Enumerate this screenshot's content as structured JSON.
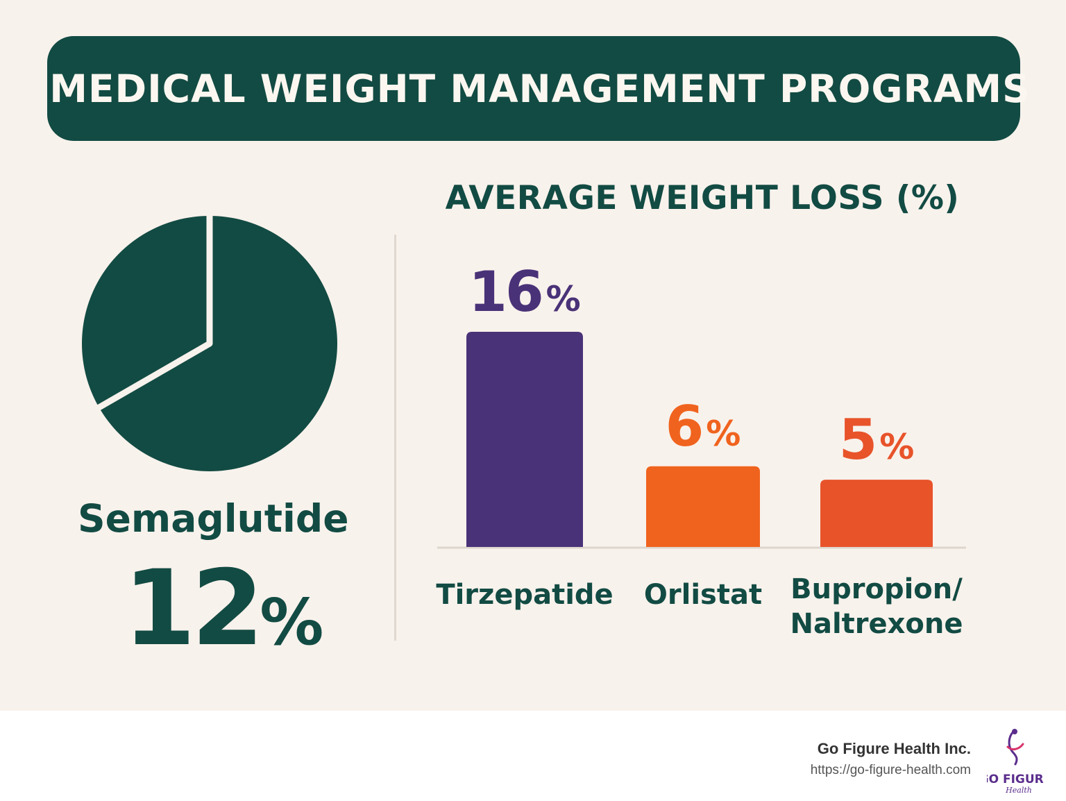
{
  "title": "MEDICAL WEIGHT MANAGEMENT PROGRAMS",
  "colors": {
    "background": "#f8f2ec",
    "dark_green": "#124b43",
    "purple": "#4a3278",
    "orange": "#f0631e",
    "orange_red": "#e8532a",
    "baseline": "#ddd6cc"
  },
  "highlight": {
    "label": "Semaglutide",
    "value": "12",
    "unit": "%"
  },
  "chart_data": [
    {
      "type": "pie",
      "slices": [
        {
          "label": "Semaglutide",
          "value": 12
        },
        {
          "label": "",
          "value": 6
        }
      ],
      "title": "",
      "value_label": "12%"
    },
    {
      "type": "bar",
      "title": "AVERAGE WEIGHT LOSS (%)",
      "categories": [
        "Tirzepatide",
        "Orlistat",
        "Bupropion/\nNaltrexone"
      ],
      "category_lines": [
        [
          "Tirzepatide"
        ],
        [
          "Orlistat"
        ],
        [
          "Bupropion/",
          "Naltrexone"
        ]
      ],
      "values": [
        16,
        6,
        5
      ],
      "value_labels": [
        "16",
        "6",
        "5"
      ],
      "unit": "%",
      "colors": [
        "#4a3278",
        "#f0631e",
        "#e8532a"
      ],
      "xlabel": "",
      "ylabel": "",
      "ylim": [
        0,
        16
      ],
      "grid": false
    }
  ],
  "footer": {
    "company": "Go Figure Health Inc.",
    "url": "https://go-figure-health.com",
    "logo_text": "GO FIGURE",
    "logo_script": "Health"
  }
}
